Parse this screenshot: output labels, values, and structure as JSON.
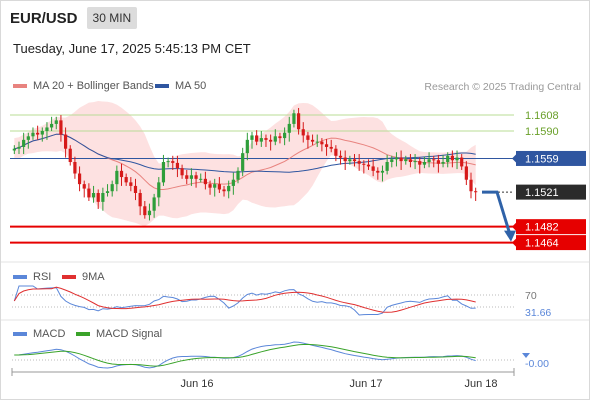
{
  "header": {
    "symbol": "EUR/USD",
    "timeframe": "30 MIN",
    "datetime": "Tuesday, June 17, 2025 5:45:13 PM CET"
  },
  "legend": {
    "ma20_label": "MA 20 + Bollinger Bands",
    "ma50_label": "MA 50",
    "credit": "Research © 2025 Trading Central"
  },
  "colors": {
    "up": "#2e9e3a",
    "down": "#d61a1a",
    "ma20": "#e8837f",
    "ma50": "#2f56a0",
    "band": "#fde1e1",
    "resistance": "#b9dc96",
    "support": "#e60000",
    "rsi": "#5b87d9",
    "ma9": "#e03030",
    "macd": "#5b87d9",
    "signal": "#3aa32a"
  },
  "chart_data": [
    {
      "type": "candlestick",
      "title": "EUR/USD 30 MIN",
      "ylim": [
        1.145,
        1.1625
      ],
      "x_ticks": [
        "Jun 16",
        "Jun 17",
        "Jun 18"
      ],
      "current_price": "1.1521",
      "levels": [
        {
          "label": "1.1608",
          "value": 1.1608,
          "kind": "resistance"
        },
        {
          "label": "1.1590",
          "value": 1.159,
          "kind": "resistance"
        },
        {
          "label": "1.1559",
          "value": 1.1559,
          "kind": "pivot"
        },
        {
          "label": "1.1482",
          "value": 1.1482,
          "kind": "support"
        },
        {
          "label": "1.1464",
          "value": 1.1464,
          "kind": "support"
        }
      ],
      "close": [
        1.157,
        1.1572,
        1.158,
        1.1584,
        1.1588,
        1.1586,
        1.159,
        1.1594,
        1.1598,
        1.1602,
        1.1586,
        1.157,
        1.1555,
        1.1542,
        1.153,
        1.1525,
        1.1515,
        1.152,
        1.151,
        1.152,
        1.1522,
        1.153,
        1.1545,
        1.1538,
        1.1532,
        1.1528,
        1.152,
        1.1505,
        1.1495,
        1.15,
        1.1515,
        1.1532,
        1.1555,
        1.1556,
        1.1554,
        1.1548,
        1.154,
        1.1536,
        1.154,
        1.1536,
        1.1536,
        1.153,
        1.1526,
        1.153,
        1.1524,
        1.1522,
        1.1528,
        1.1535,
        1.1545,
        1.1565,
        1.158,
        1.1585,
        1.1578,
        1.1582,
        1.158,
        1.1578,
        1.1584,
        1.1582,
        1.1588,
        1.1598,
        1.161,
        1.1592,
        1.1585,
        1.158,
        1.1578,
        1.1578,
        1.1575,
        1.1572,
        1.157,
        1.1562,
        1.156,
        1.1556,
        1.1558,
        1.1556,
        1.1553,
        1.1552,
        1.155,
        1.1545,
        1.1543,
        1.1545,
        1.1555,
        1.1558,
        1.156,
        1.1556,
        1.1558,
        1.1555,
        1.1556,
        1.1552,
        1.1555,
        1.1558,
        1.1557,
        1.1553,
        1.1555,
        1.1562,
        1.1557,
        1.156,
        1.155,
        1.1535,
        1.1522,
        1.1521
      ],
      "open": [
        1.1568,
        1.157,
        1.1572,
        1.158,
        1.1584,
        1.1588,
        1.1586,
        1.159,
        1.1594,
        1.1598,
        1.1602,
        1.1586,
        1.157,
        1.1555,
        1.1542,
        1.153,
        1.1525,
        1.1515,
        1.152,
        1.151,
        1.152,
        1.1522,
        1.153,
        1.1545,
        1.1538,
        1.1532,
        1.1528,
        1.152,
        1.1505,
        1.1495,
        1.15,
        1.1515,
        1.1532,
        1.1555,
        1.1556,
        1.1554,
        1.1548,
        1.154,
        1.1536,
        1.154,
        1.1536,
        1.1536,
        1.153,
        1.1526,
        1.153,
        1.1524,
        1.1522,
        1.1528,
        1.1535,
        1.1545,
        1.1565,
        1.158,
        1.1585,
        1.1578,
        1.1582,
        1.158,
        1.1578,
        1.1584,
        1.1582,
        1.1588,
        1.1598,
        1.161,
        1.1592,
        1.1585,
        1.158,
        1.1578,
        1.1578,
        1.1575,
        1.1572,
        1.157,
        1.1562,
        1.156,
        1.1556,
        1.1558,
        1.1556,
        1.1553,
        1.1552,
        1.155,
        1.1545,
        1.1543,
        1.1545,
        1.1555,
        1.1558,
        1.156,
        1.1556,
        1.1558,
        1.1555,
        1.1556,
        1.1552,
        1.1555,
        1.1558,
        1.1557,
        1.1553,
        1.1555,
        1.1562,
        1.1557,
        1.156,
        1.155,
        1.1535,
        1.1522
      ]
    },
    {
      "type": "line",
      "title": "RSI",
      "series": [
        {
          "name": "RSI"
        },
        {
          "name": "9MA"
        }
      ],
      "levels": [
        "70",
        "30"
      ],
      "current_label": "31.66"
    },
    {
      "type": "line",
      "title": "MACD",
      "series": [
        {
          "name": "MACD"
        },
        {
          "name": "MACD Signal"
        }
      ],
      "current_label": "-0.00"
    }
  ]
}
